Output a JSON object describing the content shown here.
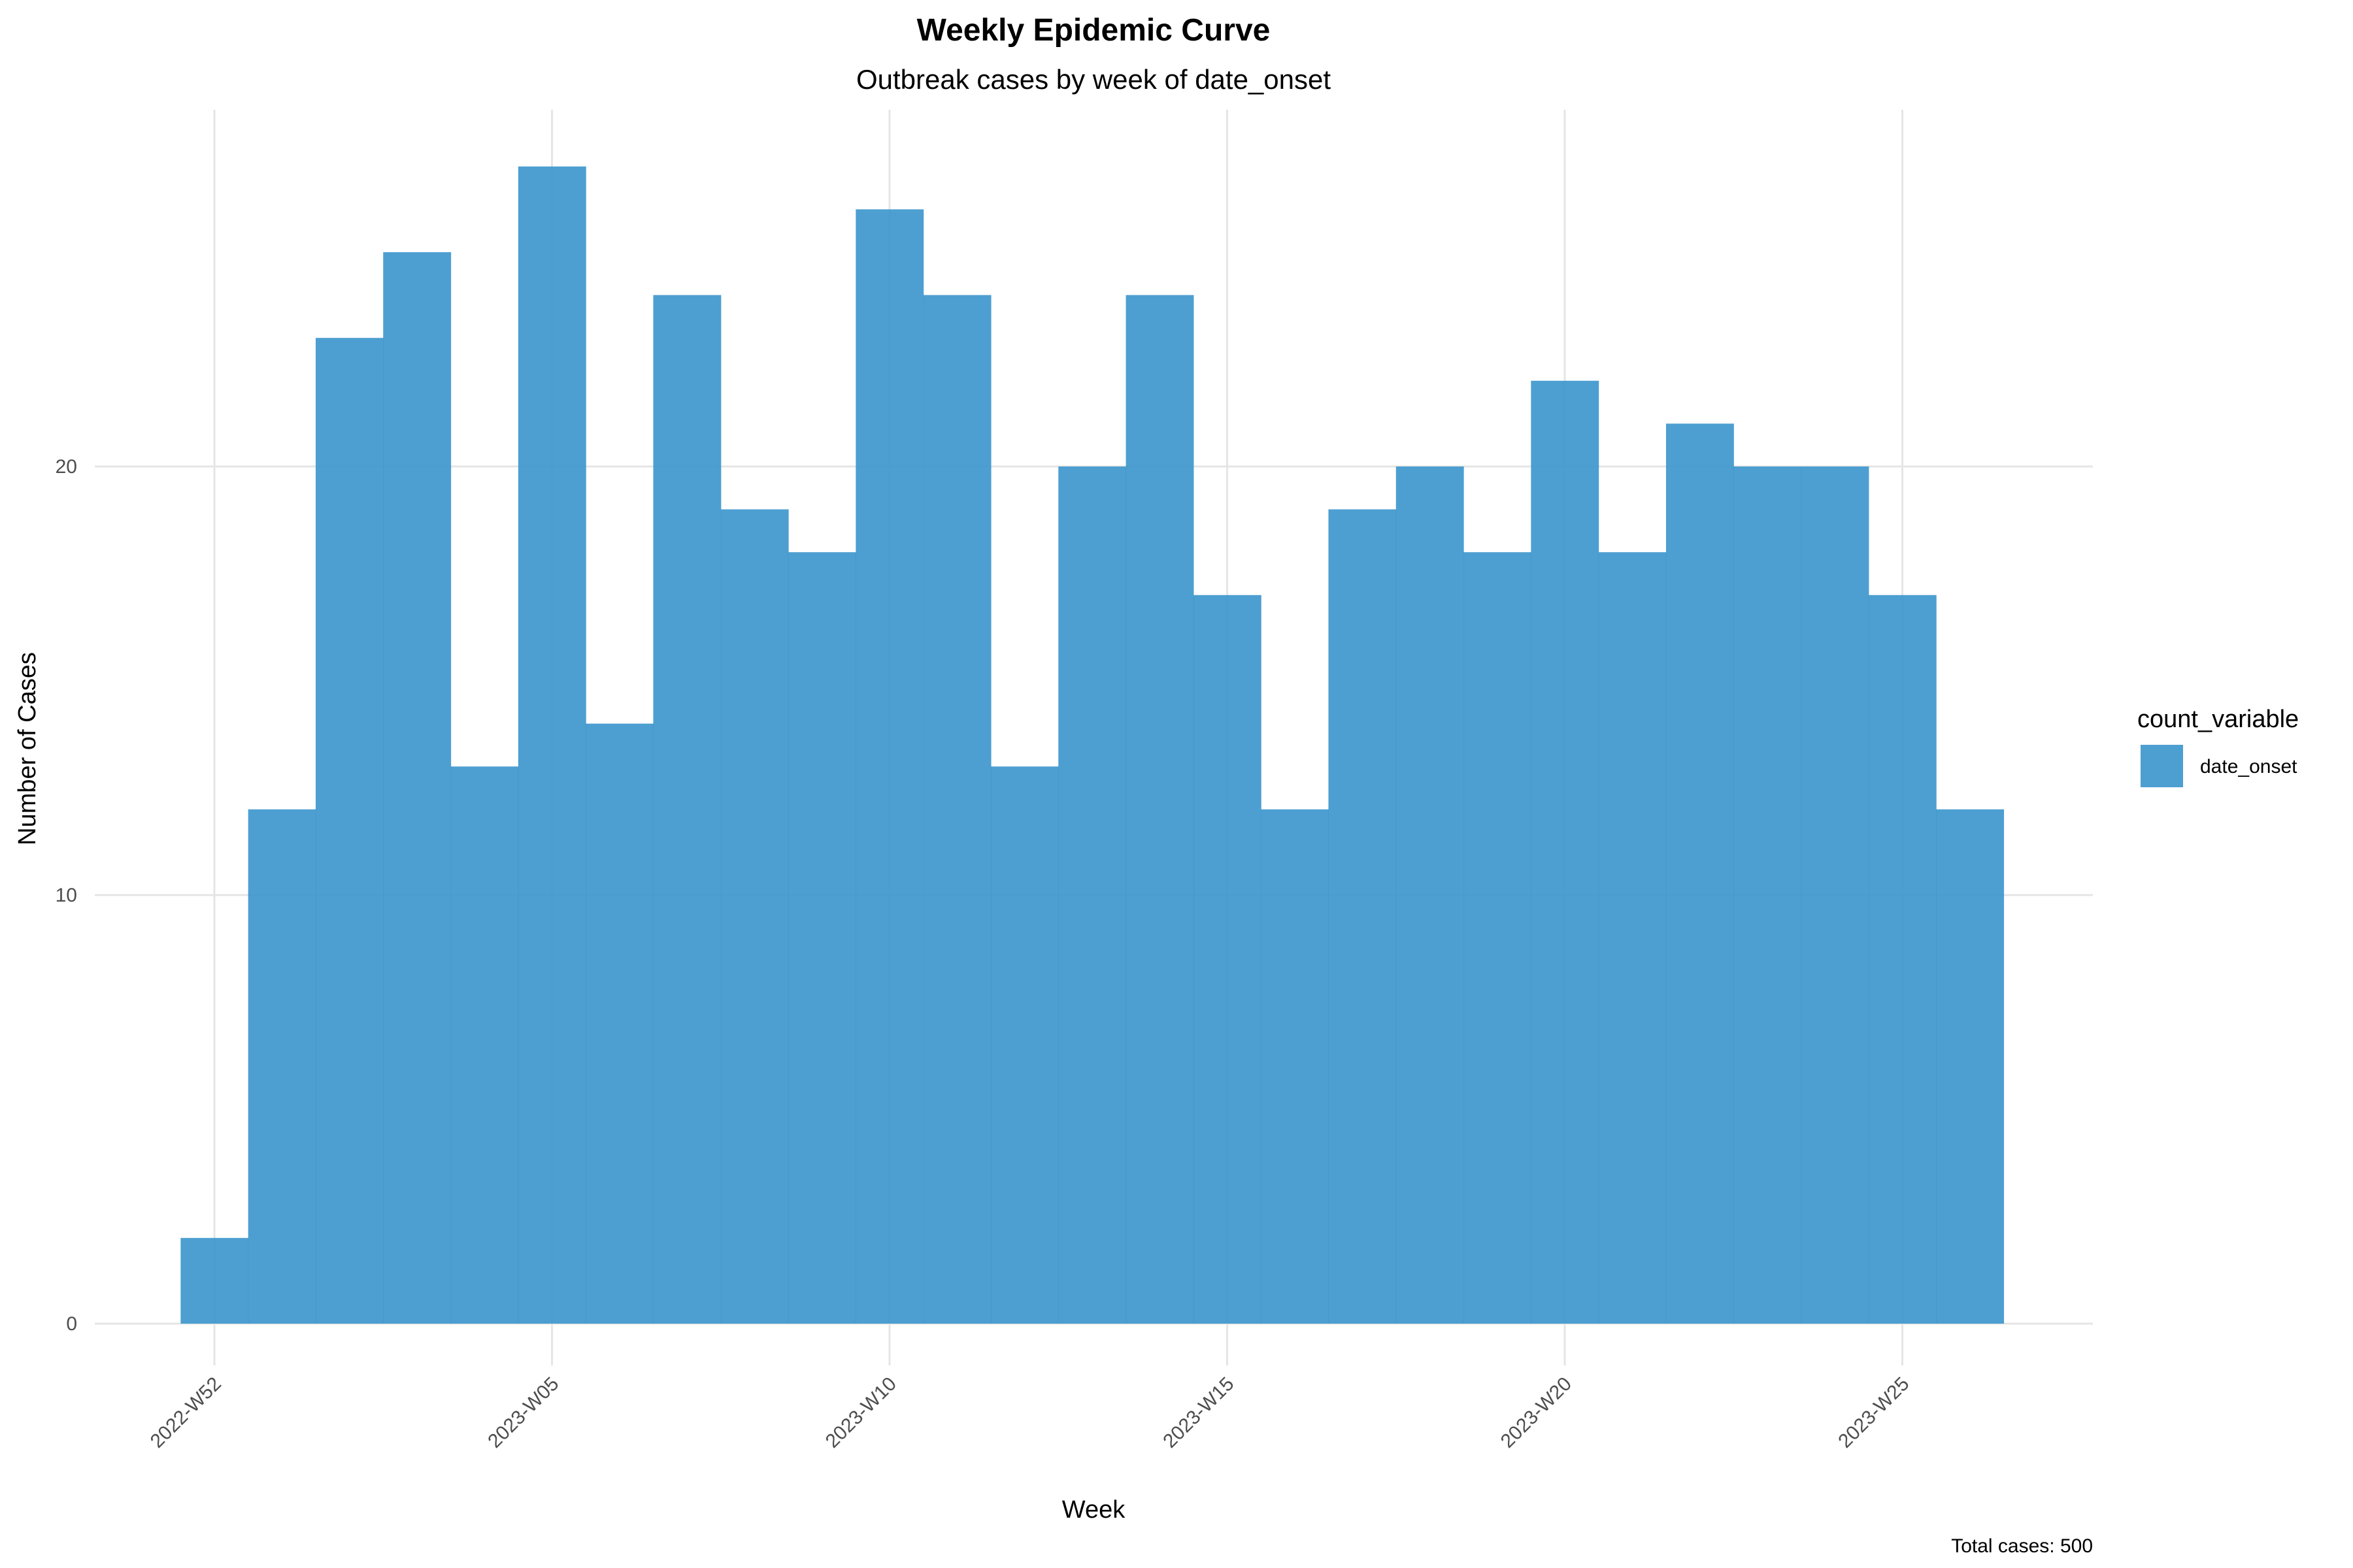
{
  "chart_data": {
    "type": "bar",
    "title": "Weekly Epidemic Curve",
    "subtitle": "Outbreak cases by week of date_onset",
    "xlabel": "Week",
    "ylabel": "Number of Cases",
    "caption": "Total cases: 500",
    "legend": {
      "title": "count_variable",
      "position": "right"
    },
    "series": [
      {
        "name": "date_onset",
        "color": "#3a95cc",
        "values": [
          2,
          12,
          23,
          25,
          13,
          27,
          14,
          24,
          19,
          18,
          26,
          24,
          13,
          20,
          24,
          17,
          12,
          19,
          20,
          18,
          22,
          18,
          21,
          20,
          20,
          17,
          12
        ]
      }
    ],
    "categories": [
      "2022-W52",
      "2023-W01",
      "2023-W02",
      "2023-W03",
      "2023-W04",
      "2023-W05",
      "2023-W06",
      "2023-W07",
      "2023-W08",
      "2023-W09",
      "2023-W10",
      "2023-W11",
      "2023-W12",
      "2023-W13",
      "2023-W14",
      "2023-W15",
      "2023-W16",
      "2023-W17",
      "2023-W18",
      "2023-W19",
      "2023-W20",
      "2023-W21",
      "2023-W22",
      "2023-W23",
      "2023-W24",
      "2023-W25",
      "2023-W26"
    ],
    "x_ticks": [
      "2022-W52",
      "2023-W05",
      "2023-W10",
      "2023-W15",
      "2023-W20",
      "2023-W25"
    ],
    "y_ticks": [
      0,
      10,
      20
    ],
    "ylim": [
      -1.2,
      28.3
    ],
    "grid": true
  }
}
